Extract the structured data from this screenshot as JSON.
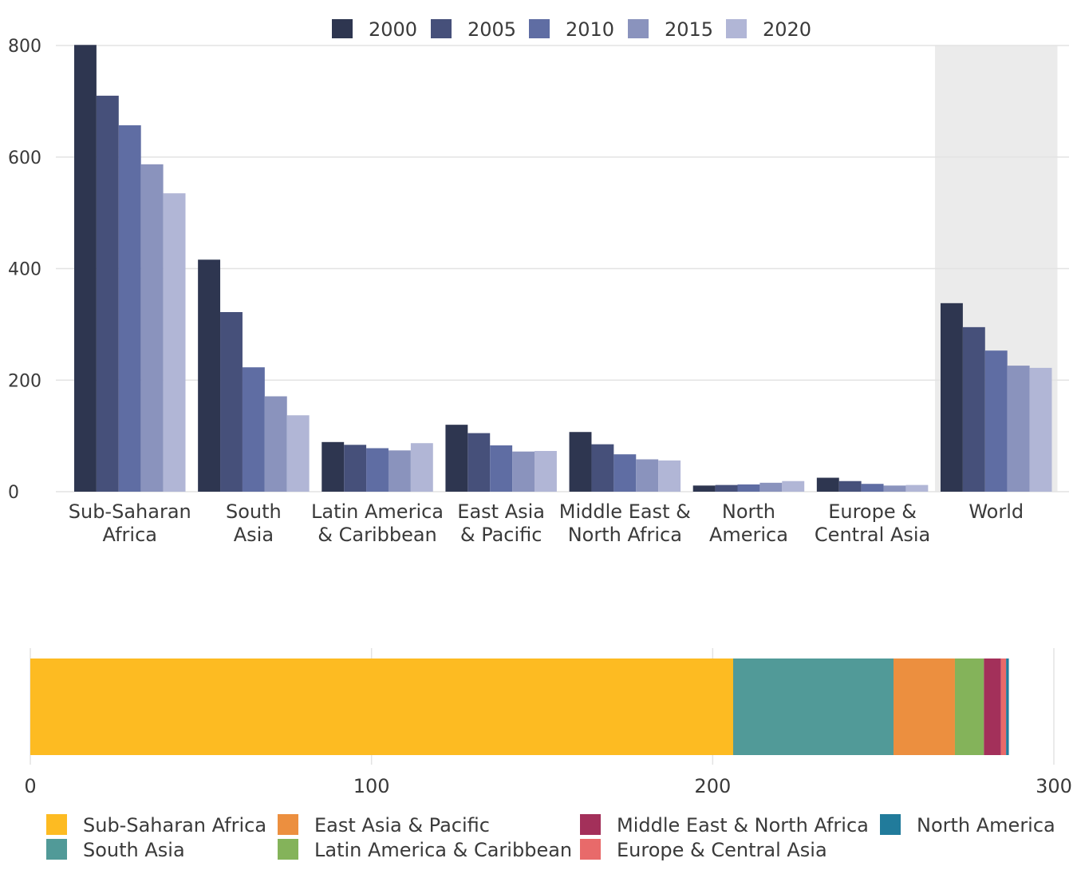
{
  "chart_data": [
    {
      "type": "bar",
      "title": "",
      "xlabel": "",
      "ylabel": "",
      "ylim": [
        0,
        800
      ],
      "yticks": [
        0,
        200,
        400,
        600,
        800
      ],
      "grid": true,
      "legend_position": "top-center",
      "highlighted_category": "World",
      "categories": [
        [
          "Sub-Saharan",
          "Africa"
        ],
        [
          "South",
          "Asia"
        ],
        [
          "Latin America",
          "& Caribbean"
        ],
        [
          "East Asia",
          "& Pacific"
        ],
        [
          "Middle East &",
          "North Africa"
        ],
        [
          "North",
          "America"
        ],
        [
          "Europe &",
          "Central Asia"
        ],
        [
          "World"
        ]
      ],
      "series": [
        {
          "name": "2000",
          "color": "#2e3650",
          "values": [
            801,
            416,
            89,
            120,
            107,
            11,
            25,
            338
          ]
        },
        {
          "name": "2005",
          "color": "#46507a",
          "values": [
            710,
            322,
            84,
            105,
            85,
            12,
            19,
            295
          ]
        },
        {
          "name": "2010",
          "color": "#5f6da3",
          "values": [
            657,
            223,
            78,
            83,
            67,
            13,
            14,
            253
          ]
        },
        {
          "name": "2015",
          "color": "#8a93bd",
          "values": [
            587,
            171,
            74,
            72,
            58,
            16,
            11,
            226
          ]
        },
        {
          "name": "2020",
          "color": "#b1b6d6",
          "values": [
            535,
            137,
            87,
            73,
            56,
            19,
            12,
            222
          ]
        }
      ]
    },
    {
      "type": "bar",
      "orientation": "horizontal",
      "stacked": true,
      "title": "",
      "xlim": [
        0,
        300
      ],
      "xticks": [
        0,
        100,
        200,
        300
      ],
      "grid": true,
      "legend_position": "bottom",
      "segments": [
        {
          "name": "Sub-Saharan Africa",
          "color": "#fdbb22",
          "value": 206
        },
        {
          "name": "South Asia",
          "color": "#519a98",
          "value": 47
        },
        {
          "name": "East Asia & Pacific",
          "color": "#ec8f3f",
          "value": 18
        },
        {
          "name": "Latin America & Caribbean",
          "color": "#84b35a",
          "value": 8.5
        },
        {
          "name": "Middle East & North Africa",
          "color": "#a3305a",
          "value": 5
        },
        {
          "name": "Europe & Central Asia",
          "color": "#e86a6a",
          "value": 1.5
        },
        {
          "name": "North America",
          "color": "#217b9b",
          "value": 0.8
        }
      ]
    }
  ]
}
